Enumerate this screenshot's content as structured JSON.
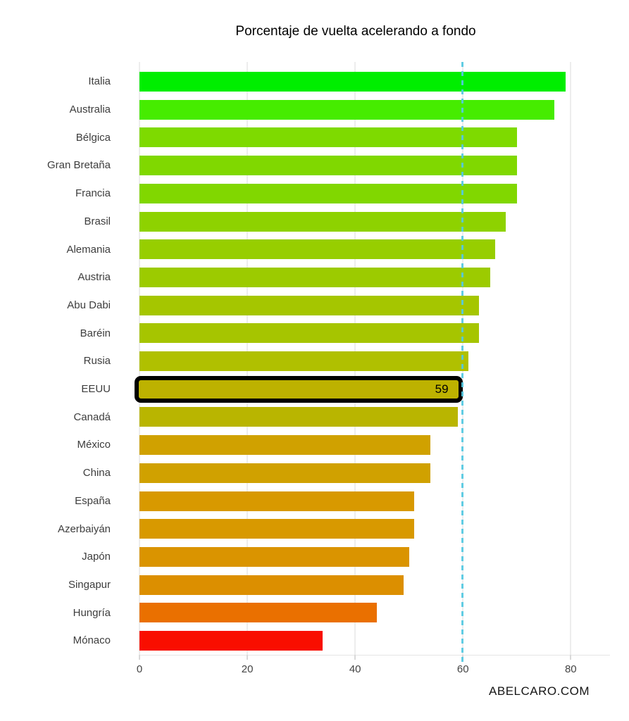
{
  "title": "Porcentaje de vuelta acelerando a fondo",
  "watermark": "ABELCARO.COM",
  "chart_data": {
    "type": "bar",
    "orientation": "horizontal",
    "title": "Porcentaje de vuelta acelerando a fondo",
    "categories": [
      "Italia",
      "Australia",
      "Bélgica",
      "Gran Bretaña",
      "Francia",
      "Brasil",
      "Alemania",
      "Austria",
      "Abu Dabi",
      "Baréin",
      "Rusia",
      "EEUU",
      "Canadá",
      "México",
      "China",
      "España",
      "Azerbaiyán",
      "Japón",
      "Singapur",
      "Hungría",
      "Mónaco"
    ],
    "values": [
      79,
      77,
      70,
      70,
      70,
      68,
      66,
      65,
      63,
      63,
      61,
      59,
      59,
      54,
      54,
      51,
      51,
      50,
      49,
      44,
      34
    ],
    "bar_colors": [
      "#00ee00",
      "#46ec00",
      "#7eda00",
      "#80d800",
      "#81d700",
      "#8ed200",
      "#97ce00",
      "#9ccb00",
      "#a5c600",
      "#a6c500",
      "#b0c000",
      "#bdb200",
      "#b9b500",
      "#d0a100",
      "#d0a100",
      "#d89900",
      "#d89900",
      "#da9400",
      "#dc8f00",
      "#ea7000",
      "#f90e00"
    ],
    "highlight": {
      "category": "EEUU",
      "index": 11,
      "value_label": "59",
      "border_color": "#000000"
    },
    "reference_line": {
      "x": 60,
      "style": "dashed",
      "color": "#55c9e2"
    },
    "x_ticks": [
      0,
      20,
      40,
      60,
      80
    ],
    "xlim": [
      0,
      87
    ],
    "xlabel": "",
    "ylabel": "",
    "grid": "vertical-light",
    "legend": "none"
  }
}
